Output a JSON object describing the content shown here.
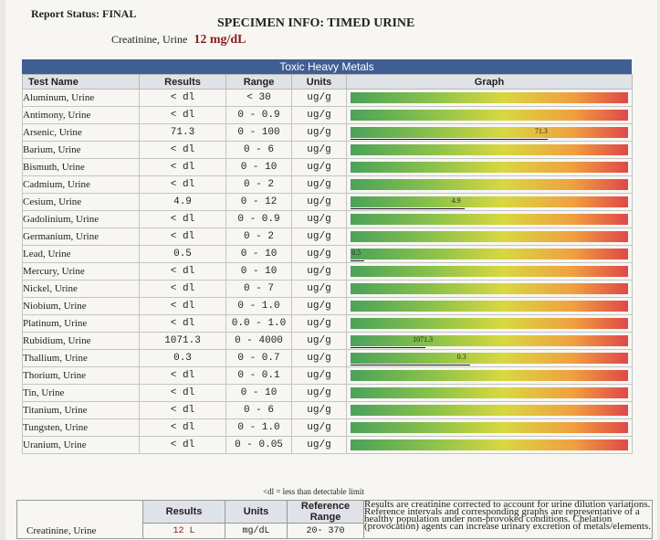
{
  "report_status": "Report Status: FINAL",
  "specimen_title": "SPECIMEN INFO: TIMED URINE",
  "creatinine_label": "Creatinine, Urine",
  "creatinine_value": "12 mg/dL",
  "section_title": "Toxic Heavy Metals",
  "columns": {
    "name": "Test Name",
    "results": "Results",
    "range": "Range",
    "units": "Units",
    "graph": "Graph"
  },
  "rows": [
    {
      "name": "Aluminum, Urine",
      "result": "< dl",
      "range": "< 30",
      "units": "ug/g"
    },
    {
      "name": "Antimony, Urine",
      "result": "< dl",
      "range": "0 - 0.9",
      "units": "ug/g"
    },
    {
      "name": "Arsenic, Urine",
      "result": "71.3",
      "range": "0 - 100",
      "units": "ug/g",
      "marker": {
        "label": "71.3",
        "fraction": 0.71
      }
    },
    {
      "name": "Barium, Urine",
      "result": "< dl",
      "range": "0 - 6",
      "units": "ug/g"
    },
    {
      "name": "Bismuth, Urine",
      "result": "< dl",
      "range": "0 - 10",
      "units": "ug/g"
    },
    {
      "name": "Cadmium, Urine",
      "result": "< dl",
      "range": "0 - 2",
      "units": "ug/g"
    },
    {
      "name": "Cesium, Urine",
      "result": "4.9",
      "range": "0 - 12",
      "units": "ug/g",
      "marker": {
        "label": "4.9",
        "fraction": 0.41
      }
    },
    {
      "name": "Gadolinium, Urine",
      "result": "< dl",
      "range": "0 - 0.9",
      "units": "ug/g"
    },
    {
      "name": "Germanium, Urine",
      "result": "< dl",
      "range": "0 - 2",
      "units": "ug/g"
    },
    {
      "name": "Lead, Urine",
      "result": "0.5",
      "range": "0 - 10",
      "units": "ug/g",
      "marker": {
        "label": "0.5",
        "fraction": 0.05
      }
    },
    {
      "name": "Mercury, Urine",
      "result": "< dl",
      "range": "0 - 10",
      "units": "ug/g"
    },
    {
      "name": "Nickel, Urine",
      "result": "< dl",
      "range": "0 - 7",
      "units": "ug/g"
    },
    {
      "name": "Niobium, Urine",
      "result": "< dl",
      "range": "0 - 1.0",
      "units": "ug/g"
    },
    {
      "name": "Platinum, Urine",
      "result": "< dl",
      "range": "0.0 - 1.0",
      "units": "ug/g"
    },
    {
      "name": "Rubidium, Urine",
      "result": "1071.3",
      "range": "0 - 4000",
      "units": "ug/g",
      "marker": {
        "label": "1071.3",
        "fraction": 0.27
      }
    },
    {
      "name": "Thallium, Urine",
      "result": "0.3",
      "range": "0 - 0.7",
      "units": "ug/g",
      "marker": {
        "label": "0.3",
        "fraction": 0.43
      }
    },
    {
      "name": "Thorium, Urine",
      "result": "< dl",
      "range": "0 - 0.1",
      "units": "ug/g"
    },
    {
      "name": "Tin, Urine",
      "result": "< dl",
      "range": "0 - 10",
      "units": "ug/g"
    },
    {
      "name": "Titanium, Urine",
      "result": "< dl",
      "range": "0 - 6",
      "units": "ug/g"
    },
    {
      "name": "Tungsten, Urine",
      "result": "< dl",
      "range": "0 - 1.0",
      "units": "ug/g"
    },
    {
      "name": "Uranium, Urine",
      "result": "< dl",
      "range": "0 - 0.05",
      "units": "ug/g"
    }
  ],
  "footnote": "<dl = less than detectable limit",
  "creatinine_table": {
    "header_results": "Results",
    "header_units": "Units",
    "header_ref": "Reference Range",
    "name": "Creatinine, Urine",
    "result": "12 L",
    "units": "mg/dL",
    "ref": "20- 370",
    "note": "Results are creatinine corrected to account for urine dilution variations. Reference intervals and corresponding graphs are representative of a healthy population under non-provoked conditions. Chelation (provocation) agents can increase urinary excretion of metals/elements."
  }
}
